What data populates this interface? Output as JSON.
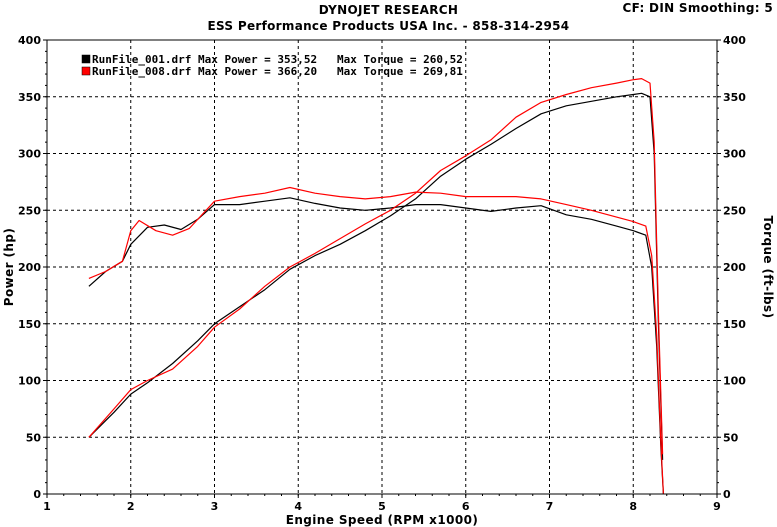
{
  "header": {
    "title": "DYNOJET RESEARCH",
    "subtitle": "ESS Performance Products USA Inc. - 858-314-2954",
    "settings": "CF: DIN  Smoothing: 5"
  },
  "chart_data": {
    "type": "line",
    "xlabel": "Engine Speed (RPM x1000)",
    "ylabel_left": "Power (hp)",
    "ylabel_right": "Torque (ft-lbs)",
    "xlim": [
      1,
      9
    ],
    "ylim": [
      0,
      400
    ],
    "x_ticks": [
      "1",
      "2",
      "3",
      "4",
      "5",
      "6",
      "7",
      "8",
      "9"
    ],
    "y_ticks": [
      "0",
      "50",
      "100",
      "150",
      "200",
      "250",
      "300",
      "350",
      "400"
    ],
    "grid": true,
    "legend_position": "top-left",
    "legend": [
      {
        "text": "RunFile_001.drf Max Power = 353,52   Max Torque = 260,52",
        "color": "#000000"
      },
      {
        "text": "RunFile_008.drf Max Power = 366,20   Max Torque = 269,81",
        "color": "#ff0000"
      }
    ],
    "series": [
      {
        "name": "RunFile_001.drf",
        "color": "#000000",
        "power": {
          "x": [
            1.5,
            1.8,
            2.0,
            2.2,
            2.5,
            2.8,
            3.0,
            3.3,
            3.6,
            3.9,
            4.2,
            4.5,
            4.8,
            5.1,
            5.4,
            5.7,
            6.0,
            6.3,
            6.6,
            6.9,
            7.2,
            7.5,
            7.8,
            8.0,
            8.1,
            8.2,
            8.25,
            8.3,
            8.35
          ],
          "y": [
            50,
            72,
            88,
            98,
            115,
            135,
            150,
            165,
            180,
            198,
            210,
            220,
            232,
            245,
            260,
            280,
            295,
            308,
            322,
            335,
            342,
            346,
            350,
            352,
            353,
            350,
            300,
            150,
            30
          ]
        },
        "torque": {
          "x": [
            1.5,
            1.7,
            1.9,
            2.0,
            2.2,
            2.4,
            2.6,
            2.8,
            3.0,
            3.3,
            3.6,
            3.9,
            4.2,
            4.5,
            4.8,
            5.1,
            5.4,
            5.7,
            6.0,
            6.3,
            6.6,
            6.9,
            7.2,
            7.5,
            7.8,
            8.0,
            8.15,
            8.22,
            8.28,
            8.33,
            8.36
          ],
          "y": [
            183,
            196,
            205,
            220,
            235,
            237,
            233,
            242,
            255,
            255,
            258,
            261,
            256,
            252,
            250,
            252,
            255,
            255,
            252,
            249,
            252,
            254,
            246,
            242,
            236,
            232,
            228,
            200,
            130,
            40,
            0
          ]
        }
      },
      {
        "name": "RunFile_008.drf",
        "color": "#ff0000",
        "power": {
          "x": [
            1.5,
            1.8,
            2.0,
            2.2,
            2.5,
            2.8,
            3.0,
            3.3,
            3.6,
            3.9,
            4.2,
            4.5,
            4.8,
            5.1,
            5.4,
            5.7,
            6.0,
            6.3,
            6.6,
            6.9,
            7.2,
            7.5,
            7.8,
            8.0,
            8.1,
            8.2,
            8.25,
            8.3,
            8.35
          ],
          "y": [
            50,
            75,
            92,
            100,
            110,
            130,
            147,
            163,
            183,
            200,
            212,
            225,
            238,
            250,
            265,
            285,
            298,
            312,
            332,
            345,
            352,
            358,
            362,
            365,
            366,
            362,
            310,
            160,
            35
          ]
        },
        "torque": {
          "x": [
            1.5,
            1.7,
            1.9,
            2.0,
            2.1,
            2.3,
            2.5,
            2.7,
            3.0,
            3.3,
            3.6,
            3.9,
            4.2,
            4.5,
            4.8,
            5.1,
            5.4,
            5.7,
            6.0,
            6.3,
            6.6,
            6.9,
            7.2,
            7.5,
            7.8,
            8.0,
            8.15,
            8.22,
            8.28,
            8.33,
            8.36
          ],
          "y": [
            190,
            196,
            205,
            232,
            241,
            232,
            228,
            234,
            258,
            262,
            265,
            270,
            265,
            262,
            260,
            262,
            266,
            265,
            262,
            262,
            262,
            260,
            255,
            250,
            244,
            240,
            236,
            210,
            140,
            45,
            0
          ]
        }
      }
    ]
  }
}
